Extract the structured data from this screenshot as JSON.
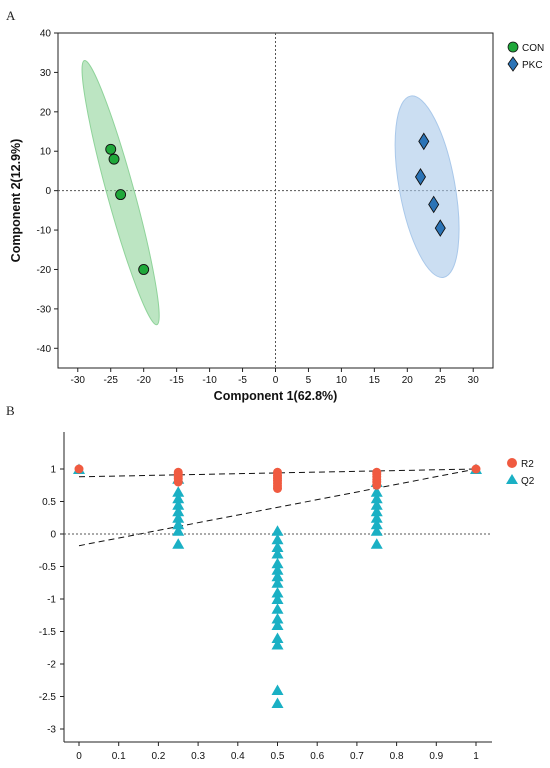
{
  "panels": {
    "a": "A",
    "b": "B"
  },
  "chart_data": [
    {
      "type": "scatter",
      "title": "",
      "xlabel": "Component 1(62.8%)",
      "ylabel": "Component 2(12.9%)",
      "xlim": [
        -33,
        33
      ],
      "ylim": [
        -45,
        40
      ],
      "xticks": [
        -30,
        -25,
        -20,
        -15,
        -10,
        -5,
        0,
        5,
        10,
        15,
        20,
        25,
        30
      ],
      "yticks": [
        -40,
        -30,
        -20,
        -10,
        0,
        10,
        20,
        30,
        40
      ],
      "reference_lines": {
        "x": 0,
        "y": 0,
        "style": "dotted"
      },
      "legend_position": "right, outside top",
      "series": [
        {
          "name": "CON",
          "marker": "circle",
          "color": "#1fa83a",
          "ellipse_color": "#8fd39a",
          "points": [
            [
              -25,
              10.5
            ],
            [
              -24.5,
              8
            ],
            [
              -23.5,
              -1
            ],
            [
              -20,
              -20
            ]
          ]
        },
        {
          "name": "PKC",
          "marker": "diamond",
          "color": "#2b73b6",
          "ellipse_color": "#a9c8ea",
          "points": [
            [
              22.5,
              12.5
            ],
            [
              22,
              3.5
            ],
            [
              24,
              -3.5
            ],
            [
              25,
              -9.5
            ]
          ]
        }
      ]
    },
    {
      "type": "scatter",
      "title": "",
      "xlabel": "",
      "ylabel": "",
      "xlim": [
        -0.03,
        1.03
      ],
      "ylim": [
        -3.05,
        1.5
      ],
      "xticks": [
        0,
        0.1,
        0.2,
        0.3,
        0.4,
        0.5,
        0.6,
        0.7,
        0.8,
        0.9,
        1
      ],
      "yticks": [
        1,
        0.5,
        0,
        -0.5,
        -1,
        -1.5,
        -2,
        -2.5,
        -3
      ],
      "reference_lines": {
        "y": 0,
        "style": "dotted"
      },
      "legend_position": "right, outside top",
      "series": [
        {
          "name": "R2",
          "marker": "circle",
          "color": "#f05a40",
          "points": [
            [
              0,
              1.0
            ],
            [
              0.25,
              0.95
            ],
            [
              0.25,
              0.92
            ],
            [
              0.25,
              0.88
            ],
            [
              0.25,
              0.85
            ],
            [
              0.25,
              0.8
            ],
            [
              0.5,
              0.95
            ],
            [
              0.5,
              0.9
            ],
            [
              0.5,
              0.86
            ],
            [
              0.5,
              0.82
            ],
            [
              0.5,
              0.78
            ],
            [
              0.5,
              0.74
            ],
            [
              0.5,
              0.7
            ],
            [
              0.75,
              0.95
            ],
            [
              0.75,
              0.92
            ],
            [
              0.75,
              0.88
            ],
            [
              0.75,
              0.84
            ],
            [
              0.75,
              0.8
            ],
            [
              0.75,
              0.75
            ],
            [
              1,
              1.0
            ]
          ],
          "trend": [
            [
              0,
              0.88
            ],
            [
              1,
              1.0
            ]
          ]
        },
        {
          "name": "Q2",
          "marker": "triangle",
          "color": "#1ab0c4",
          "points": [
            [
              0,
              1.0
            ],
            [
              0.25,
              0.85
            ],
            [
              0.25,
              0.65
            ],
            [
              0.25,
              0.55
            ],
            [
              0.25,
              0.45
            ],
            [
              0.25,
              0.35
            ],
            [
              0.25,
              0.25
            ],
            [
              0.25,
              0.15
            ],
            [
              0.25,
              0.05
            ],
            [
              0.25,
              -0.15
            ],
            [
              0.5,
              0.05
            ],
            [
              0.5,
              -0.08
            ],
            [
              0.5,
              -0.2
            ],
            [
              0.5,
              -0.3
            ],
            [
              0.5,
              -0.45
            ],
            [
              0.5,
              -0.55
            ],
            [
              0.5,
              -0.65
            ],
            [
              0.5,
              -0.75
            ],
            [
              0.5,
              -0.9
            ],
            [
              0.5,
              -1.0
            ],
            [
              0.5,
              -1.15
            ],
            [
              0.5,
              -1.3
            ],
            [
              0.5,
              -1.4
            ],
            [
              0.5,
              -1.6
            ],
            [
              0.5,
              -1.7
            ],
            [
              0.5,
              -2.4
            ],
            [
              0.5,
              -2.6
            ],
            [
              0.75,
              0.8
            ],
            [
              0.75,
              0.65
            ],
            [
              0.75,
              0.55
            ],
            [
              0.75,
              0.45
            ],
            [
              0.75,
              0.35
            ],
            [
              0.75,
              0.25
            ],
            [
              0.75,
              0.15
            ],
            [
              0.75,
              0.05
            ],
            [
              0.75,
              -0.15
            ],
            [
              1,
              1.0
            ]
          ],
          "trend": [
            [
              0,
              -0.18
            ],
            [
              1,
              1.0
            ]
          ]
        }
      ]
    }
  ]
}
